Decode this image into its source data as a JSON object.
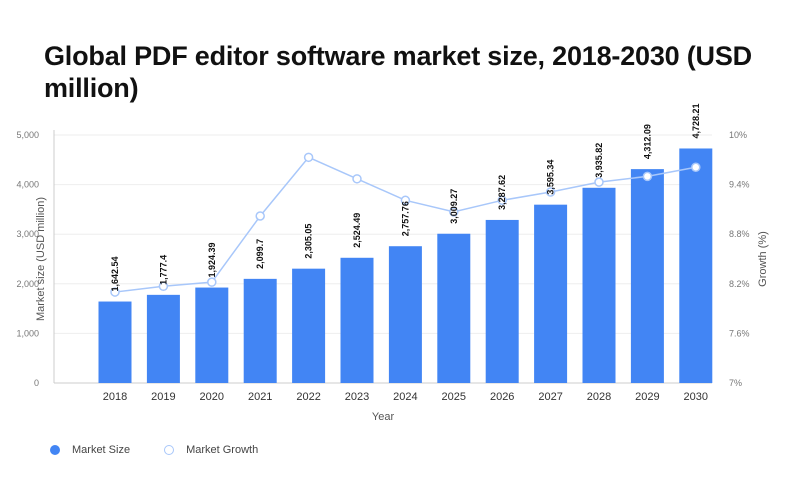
{
  "chart_data": {
    "type": "bar+line",
    "title": "Global PDF editor software market size, 2018-2030 (USD million)",
    "xlabel": "Year",
    "ylabel": "Market size (USD million)",
    "y2label": "Growth (%)",
    "ylim": [
      0,
      5000
    ],
    "y2lim": [
      7,
      10
    ],
    "yticks": [
      "0",
      "1,000",
      "2,000",
      "3,000",
      "4,000",
      "5,000"
    ],
    "y2ticks": [
      "7%",
      "7.6%",
      "8.2%",
      "8.8%",
      "9.4%",
      "10%"
    ],
    "grid": true,
    "legend_position": "bottom-left",
    "categories": [
      "2018",
      "2019",
      "2020",
      "2021",
      "2022",
      "2023",
      "2024",
      "2025",
      "2026",
      "2027",
      "2028",
      "2029",
      "2030"
    ],
    "series": [
      {
        "name": "Market Size",
        "type": "bar",
        "color": "#4285f4",
        "values": [
          1642.54,
          1777.4,
          1924.39,
          2099.7,
          2305.05,
          2524.49,
          2757.76,
          3009.27,
          3287.62,
          3595.34,
          3935.82,
          4312.09,
          4728.21
        ],
        "labels": [
          "1,642.54",
          "1,777.4",
          "1,924.39",
          "2,099.7",
          "2,305.05",
          "2,524.49",
          "2,757.76",
          "3,009.27",
          "3,287.62",
          "3,595.34",
          "3,935.82",
          "4,312.09",
          "4,728.21"
        ]
      },
      {
        "name": "Market Growth",
        "type": "line",
        "color": "#a8c7fa",
        "values": [
          8.1,
          8.17,
          8.22,
          9.02,
          9.73,
          9.47,
          9.21,
          9.07,
          9.21,
          9.31,
          9.43,
          9.5,
          9.61
        ]
      }
    ]
  }
}
